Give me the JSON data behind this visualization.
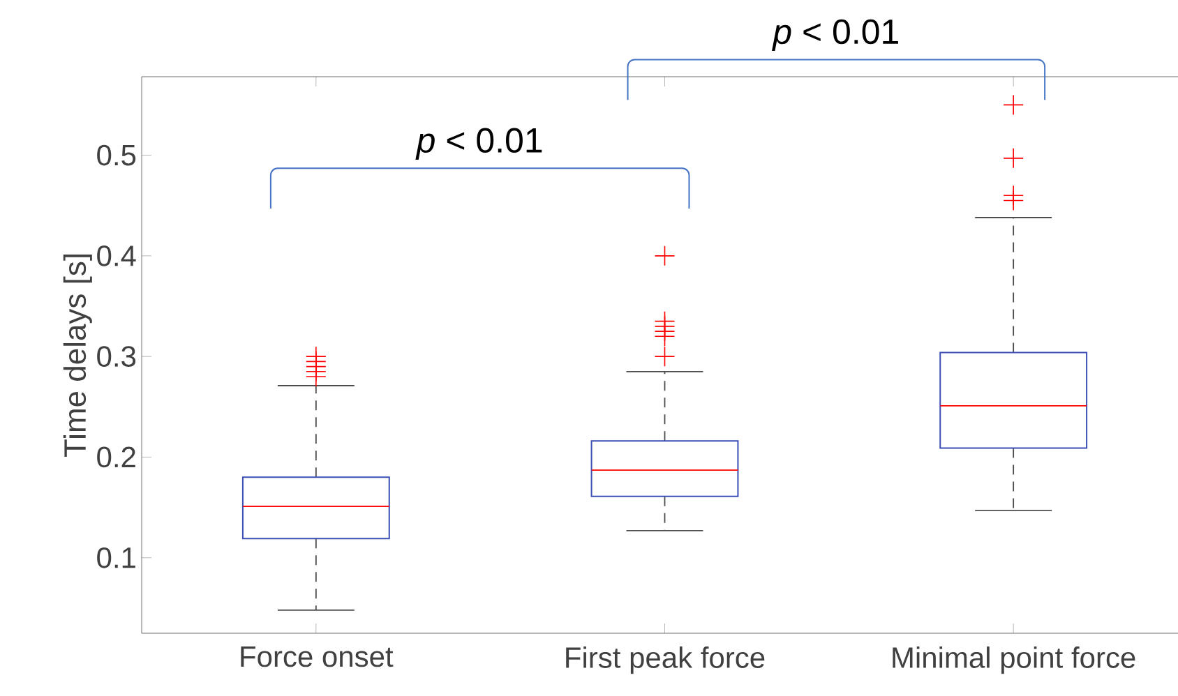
{
  "chart_data": {
    "type": "box",
    "ylabel": "Time delays [s]",
    "categories": [
      "Force onset",
      "First peak force",
      "Minimal point force"
    ],
    "boxes": [
      {
        "low": 0.048,
        "q1": 0.119,
        "median": 0.151,
        "q3": 0.18,
        "high": 0.271,
        "outliers": [
          0.28,
          0.285,
          0.29,
          0.295,
          0.3
        ]
      },
      {
        "low": 0.127,
        "q1": 0.161,
        "median": 0.187,
        "q3": 0.216,
        "high": 0.285,
        "outliers": [
          0.3,
          0.32,
          0.325,
          0.33,
          0.335,
          0.4
        ]
      },
      {
        "low": 0.147,
        "q1": 0.209,
        "median": 0.251,
        "q3": 0.304,
        "high": 0.438,
        "outliers": [
          0.455,
          0.46,
          0.497,
          0.55
        ]
      }
    ],
    "ylim": [
      0.025,
      0.578
    ],
    "yticks": [
      0.1,
      0.2,
      0.3,
      0.4,
      0.5
    ],
    "annotations": [
      "*p* < 0.01",
      "*p* < 0.01"
    ]
  }
}
